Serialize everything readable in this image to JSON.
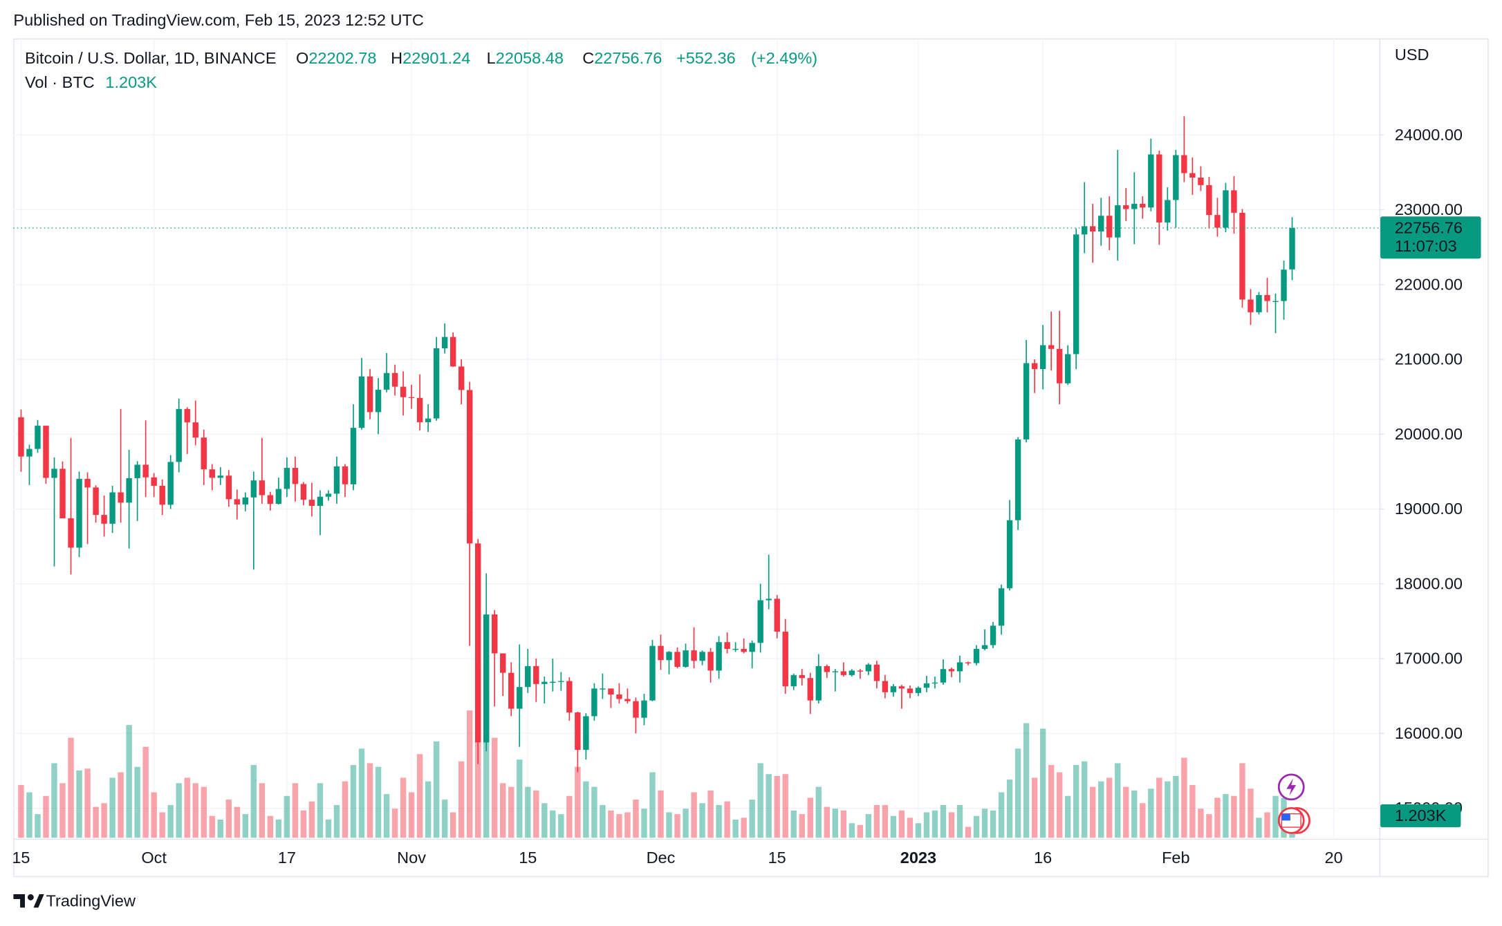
{
  "published": "Published on TradingView.com, Feb 15, 2023 12:52 UTC",
  "brand": "TradingView",
  "chart_data": {
    "type": "candlestick",
    "title": "Bitcoin / U.S. Dollar, 1D, BINANCE",
    "ohlc_labels": [
      "O",
      "H",
      "L",
      "C"
    ],
    "change": {
      "value": 552.36,
      "label": "+552.36"
    },
    "change_pct": {
      "value": 2.49,
      "label": "(+2.49%)"
    },
    "volume_title": "Vol · BTC",
    "volume_label": "1.203K",
    "axis_unit": "USD",
    "countdown": "11:07:03",
    "up_color": "#089981",
    "down_color": "#f23645",
    "grid": true,
    "open": [
      20227,
      19701,
      19803,
      20113,
      19416,
      19538,
      18875,
      18483,
      19403,
      19288,
      18921,
      18803,
      19222,
      19085,
      19412,
      19592,
      19423,
      19310,
      19057,
      19629,
      20337,
      20158,
      19955,
      19530,
      19417,
      19446,
      19131,
      19060,
      19155,
      19382,
      19185,
      19068,
      19268,
      19550,
      19334,
      19124,
      19041,
      19164,
      19205,
      19570,
      19330,
      20085,
      20772,
      20295,
      20595,
      20818,
      20635,
      20495,
      20485,
      20160,
      20210,
      21148,
      21300,
      20905,
      20590,
      18540,
      15880,
      17590,
      17070,
      16810,
      16330,
      16620,
      16900,
      16660,
      16690,
      16690,
      16700,
      16280,
      15780,
      16230,
      16600,
      16600,
      16520,
      16460,
      16430,
      16210,
      16440,
      17170,
      16980,
      17090,
      16890,
      17110,
      16970,
      17090,
      16840,
      17220,
      17130,
      17130,
      17090,
      17210,
      17780,
      17800,
      17360,
      16630,
      16780,
      16740,
      16440,
      16900,
      16820,
      16830,
      16780,
      16840,
      16830,
      16920,
      16700,
      16550,
      16630,
      16600,
      16540,
      16610,
      16670,
      16680,
      16860,
      16830,
      16950,
      16940,
      17130,
      17180,
      17440,
      17940,
      18850,
      19930,
      20950,
      20870,
      21190,
      21140,
      20680,
      21070,
      22670,
      22780,
      22710,
      22920,
      22630,
      23060,
      23010,
      23080,
      23030,
      23740,
      22830,
      23130,
      23730,
      23490,
      23430,
      23330,
      22930,
      22760,
      23260,
      22960,
      21800,
      21630,
      21860,
      21780,
      21780,
      22202.78
    ],
    "high": [
      20330,
      19860,
      20190,
      20115,
      19690,
      19636,
      19950,
      19500,
      19490,
      19316,
      19180,
      19310,
      20338,
      19790,
      19640,
      20185,
      19480,
      19395,
      19720,
      20475,
      20360,
      20450,
      20060,
      19600,
      19560,
      19520,
      19260,
      19220,
      19500,
      19950,
      19230,
      19420,
      19690,
      19700,
      19360,
      19350,
      19250,
      19250,
      19700,
      19600,
      20400,
      21020,
      20870,
      20750,
      21085,
      20930,
      20840,
      20660,
      20800,
      20400,
      21300,
      21480,
      21360,
      21000,
      20700,
      18600,
      18140,
      17650,
      17070,
      16950,
      17190,
      17130,
      17000,
      16760,
      17000,
      16820,
      16750,
      16290,
      16270,
      16670,
      16800,
      16600,
      16670,
      16600,
      16480,
      16530,
      17250,
      17320,
      17100,
      17150,
      17200,
      17420,
      17110,
      17140,
      17300,
      17350,
      17220,
      17270,
      17240,
      18000,
      18390,
      17850,
      17530,
      16800,
      16860,
      16810,
      17060,
      16920,
      16860,
      16950,
      16860,
      16860,
      16940,
      16970,
      16780,
      16660,
      16650,
      16640,
      16630,
      16770,
      16760,
      16990,
      16880,
      17040,
      16960,
      17180,
      17390,
      17490,
      17990,
      19120,
      19960,
      21260,
      21000,
      21460,
      21640,
      21650,
      21190,
      22750,
      23370,
      23080,
      23160,
      23180,
      23800,
      23290,
      23500,
      23180,
      23950,
      23790,
      23300,
      23800,
      24250,
      23700,
      23580,
      23440,
      23160,
      23360,
      23450,
      23010,
      21940,
      21900,
      22090,
      21880,
      22320,
      22901.24
    ],
    "low": [
      19497,
      19320,
      19750,
      19336,
      18232,
      18900,
      18125,
      18357,
      18531,
      18817,
      18630,
      18680,
      18817,
      18470,
      18840,
      19160,
      19160,
      18920,
      19000,
      19490,
      19735,
      19850,
      19320,
      19250,
      19320,
      19030,
      18860,
      18970,
      18190,
      19070,
      18980,
      19060,
      19160,
      19100,
      19050,
      18900,
      18650,
      19110,
      19070,
      19160,
      19250,
      20060,
      20200,
      20000,
      20560,
      20515,
      20250,
      20340,
      20050,
      20030,
      20180,
      21080,
      20900,
      20400,
      17170,
      15590,
      15760,
      16360,
      16500,
      16230,
      15820,
      16540,
      16420,
      16400,
      16560,
      16570,
      16170,
      15480,
      15650,
      16170,
      16460,
      16340,
      16400,
      16400,
      16000,
      16110,
      16430,
      16850,
      16790,
      16870,
      16880,
      16870,
      16910,
      16680,
      16730,
      17070,
      17090,
      17070,
      16870,
      17080,
      17660,
      17270,
      16530,
      16580,
      16640,
      16260,
      16400,
      16740,
      16560,
      16760,
      16760,
      16730,
      16780,
      16600,
      16470,
      16490,
      16330,
      16470,
      16500,
      16550,
      16600,
      16650,
      16750,
      16680,
      16910,
      16910,
      17110,
      17140,
      17320,
      17910,
      18720,
      19890,
      20550,
      20600,
      20850,
      20400,
      20660,
      20870,
      22420,
      22290,
      22520,
      22460,
      22320,
      22850,
      22540,
      22880,
      22980,
      22530,
      22720,
      22760,
      23370,
      23200,
      23250,
      22750,
      22640,
      22700,
      22680,
      21690,
      21460,
      21600,
      21630,
      21350,
      21530,
      22058.48
    ],
    "close": [
      19701,
      19803,
      20113,
      19416,
      19538,
      18875,
      18483,
      19403,
      19288,
      18921,
      18803,
      19222,
      19085,
      19412,
      19592,
      19423,
      19310,
      19057,
      19629,
      20337,
      20158,
      19955,
      19530,
      19417,
      19446,
      19131,
      19060,
      19155,
      19382,
      19185,
      19068,
      19268,
      19550,
      19334,
      19124,
      19041,
      19164,
      19205,
      19570,
      19330,
      20085,
      20772,
      20295,
      20595,
      20818,
      20635,
      20495,
      20485,
      20160,
      20210,
      21148,
      21300,
      20905,
      20590,
      18540,
      15880,
      17590,
      17070,
      16810,
      16330,
      16620,
      16900,
      16660,
      16690,
      16690,
      16700,
      16280,
      15780,
      16230,
      16600,
      16600,
      16520,
      16460,
      16430,
      16210,
      16440,
      17170,
      16980,
      17090,
      16890,
      17110,
      16970,
      17090,
      16840,
      17220,
      17130,
      17130,
      17090,
      17210,
      17780,
      17800,
      17360,
      16630,
      16780,
      16740,
      16440,
      16900,
      16820,
      16830,
      16780,
      16840,
      16830,
      16920,
      16700,
      16550,
      16630,
      16600,
      16540,
      16610,
      16670,
      16680,
      16860,
      16830,
      16950,
      16940,
      17130,
      17180,
      17440,
      17940,
      18850,
      19930,
      20950,
      20870,
      21190,
      21140,
      20680,
      21070,
      22670,
      22780,
      22710,
      22920,
      22630,
      23060,
      23010,
      23080,
      23030,
      23740,
      22830,
      23130,
      23730,
      23490,
      23430,
      23330,
      22930,
      22760,
      23260,
      22960,
      21800,
      21630,
      21860,
      21780,
      21780,
      22200,
      22756.76
    ],
    "volume": [
      2.9,
      2.5,
      1.3,
      2.3,
      4.1,
      3.0,
      5.5,
      3.7,
      3.8,
      1.7,
      1.9,
      3.3,
      3.6,
      6.2,
      3.9,
      5.0,
      2.5,
      1.4,
      1.8,
      3.0,
      3.3,
      3.0,
      2.8,
      1.2,
      1.0,
      2.1,
      1.7,
      1.3,
      4.0,
      3.0,
      1.2,
      1.0,
      2.3,
      3.0,
      1.5,
      2.0,
      3.0,
      1.0,
      1.8,
      3.1,
      4.0,
      4.9,
      4.1,
      3.9,
      2.4,
      1.6,
      3.3,
      2.5,
      4.6,
      3.1,
      5.3,
      2.1,
      1.4,
      4.2,
      7.0,
      9.5,
      8.0,
      5.5,
      3.0,
      2.8,
      4.3,
      2.8,
      2.6,
      1.9,
      1.5,
      1.3,
      2.3,
      3.9,
      3.1,
      2.8,
      1.8,
      1.5,
      1.3,
      1.4,
      2.1,
      1.6,
      3.6,
      2.6,
      1.4,
      1.3,
      1.6,
      2.5,
      1.9,
      2.6,
      1.8,
      2.0,
      1.0,
      1.1,
      2.1,
      4.1,
      3.5,
      3.4,
      3.5,
      1.5,
      1.3,
      2.2,
      2.8,
      1.7,
      1.6,
      1.5,
      0.8,
      0.7,
      1.3,
      1.8,
      1.8,
      1.2,
      1.5,
      1.1,
      0.8,
      1.4,
      1.5,
      1.8,
      1.4,
      1.8,
      0.6,
      1.2,
      1.6,
      1.5,
      2.5,
      3.2,
      4.9,
      6.3,
      3.3,
      6.0,
      4.0,
      3.6,
      2.3,
      4.0,
      4.2,
      2.8,
      3.1,
      3.3,
      4.1,
      2.8,
      2.6,
      1.9,
      2.7,
      3.3,
      3.1,
      3.4,
      4.4,
      2.9,
      1.6,
      1.3,
      2.2,
      2.4,
      2.3,
      4.1,
      2.7,
      1.1,
      1.4,
      2.3,
      2.2,
      1.203
    ],
    "vlim": [
      0,
      10
    ],
    "xlim": [
      -0.92,
      163.5
    ],
    "xticks": [
      {
        "value": 0,
        "label": "15"
      },
      {
        "value": 16,
        "label": "Oct"
      },
      {
        "value": 32,
        "label": "17"
      },
      {
        "value": 47,
        "label": "Nov"
      },
      {
        "value": 61,
        "label": "15"
      },
      {
        "value": 77,
        "label": "Dec"
      },
      {
        "value": 91,
        "label": "15"
      },
      {
        "value": 108,
        "label": "2023"
      },
      {
        "value": 123,
        "label": "16"
      },
      {
        "value": 139,
        "label": "Feb"
      },
      {
        "value": 158,
        "label": "20"
      }
    ],
    "ylim": [
      14605,
      25290
    ],
    "yticks": [
      {
        "value": 15000,
        "label": "15000.00"
      },
      {
        "value": 16000,
        "label": "16000.00"
      },
      {
        "value": 17000,
        "label": "17000.00"
      },
      {
        "value": 18000,
        "label": "18000.00"
      },
      {
        "value": 19000,
        "label": "19000.00"
      },
      {
        "value": 20000,
        "label": "20000.00"
      },
      {
        "value": 21000,
        "label": "21000.00"
      },
      {
        "value": 22000,
        "label": "22000.00"
      },
      {
        "value": 23000,
        "label": "23000.00"
      },
      {
        "value": 24000,
        "label": "24000.00"
      }
    ]
  }
}
